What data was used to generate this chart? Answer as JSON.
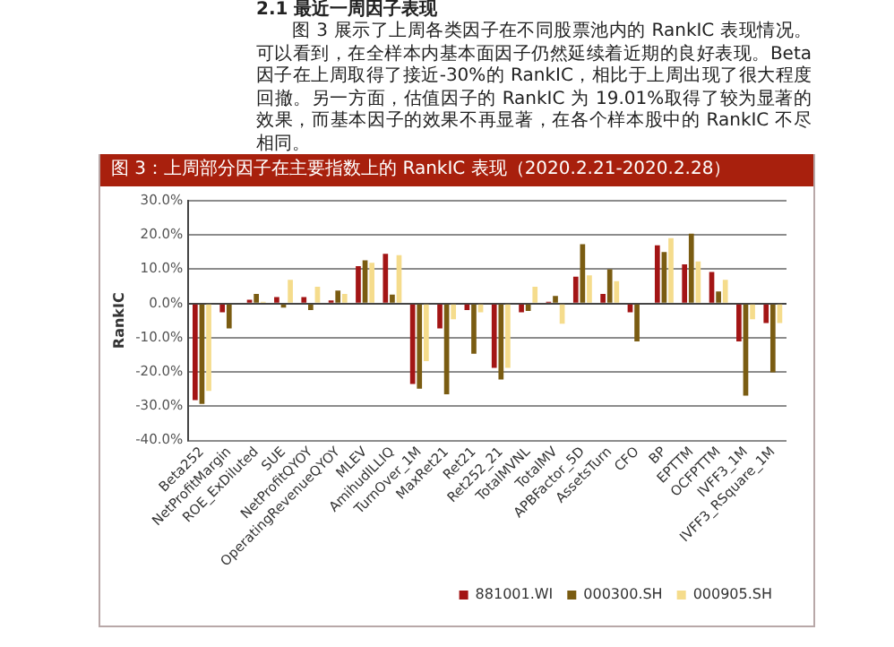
{
  "chart_data": {
    "type": "bar",
    "title": "图 3：上周部分因子在主要指数上的 RankIC 表现（2020.2.21-2020.2.28）",
    "ylabel": "RankIC",
    "annotations": [
      "2.1 最近一周因子表现",
      "图 3 展示了上周各类因子在不同股票池内的 RankIC 表现情况。可以看到，在全样本内基本面因子仍然延续着近期的良好表现。Beta 因子在上周取得了接近-30%的 RankIC，相比于上周出现了很大程度回撤。另一方面，估值因子的 RankIC 为 19.01%取得了较为显著的效果，而基本因子的效果不再显著，在各个样本股中的 RankIC 不尽相同。"
    ],
    "categories": [
      "Beta252",
      "NetProfitMargin",
      "ROE_ExDiluted",
      "SUE",
      "NetProfitQYOY",
      "OperatingRevenueQYOY",
      "MLEV",
      "AmihudILLIQ",
      "TurnOver_1M",
      "MaxRet21",
      "Ret21",
      "Ret252_21",
      "TotalMVNL",
      "TotalMV",
      "APBFactor_5D",
      "AssetsTurn",
      "CFO",
      "BP",
      "EPTTM",
      "OCFPTTM",
      "IVFF3_1M",
      "IVFF3_RSquare_1M"
    ],
    "series": [
      {
        "name": "881001.WI",
        "color": "#a31515",
        "values": [
          -28.2,
          -2.6,
          1.1,
          1.9,
          1.9,
          0.9,
          10.9,
          14.5,
          -23.5,
          -7.3,
          -1.9,
          -18.8,
          -2.6,
          0.5,
          7.8,
          2.8,
          -2.6,
          17.0,
          11.4,
          9.2,
          -11.1,
          -5.7
        ]
      },
      {
        "name": "000300.SH",
        "color": "#7a5c12",
        "values": [
          -29.3,
          -7.3,
          2.8,
          -1.2,
          -1.9,
          3.8,
          12.6,
          2.6,
          -24.9,
          -26.5,
          -14.7,
          -22.2,
          -2.2,
          2.2,
          17.3,
          10.0,
          -11.1,
          15.0,
          20.4,
          3.5,
          -26.9,
          -20.1
        ]
      },
      {
        "name": "000905.SH",
        "color": "#f5dc8c",
        "values": [
          -25.5,
          null,
          0.5,
          6.9,
          4.9,
          2.8,
          11.9,
          14.1,
          -16.8,
          -4.6,
          -2.6,
          -18.8,
          4.9,
          -5.9,
          8.2,
          6.5,
          null,
          19.1,
          12.3,
          6.9,
          -4.6,
          -5.7
        ]
      }
    ],
    "ylim": [
      -40,
      30
    ],
    "yticks": [
      {
        "value": 30,
        "label": "30.0%"
      },
      {
        "value": 20,
        "label": "20.0%"
      },
      {
        "value": 10,
        "label": "10.0%"
      },
      {
        "value": 0,
        "label": "0.0%"
      },
      {
        "value": -10,
        "label": "-10.0%"
      },
      {
        "value": -20,
        "label": "-20.0%"
      },
      {
        "value": -30,
        "label": "-30.0%"
      },
      {
        "value": -40,
        "label": "-40.0%"
      }
    ],
    "grid": "y",
    "legend": "bottom"
  }
}
